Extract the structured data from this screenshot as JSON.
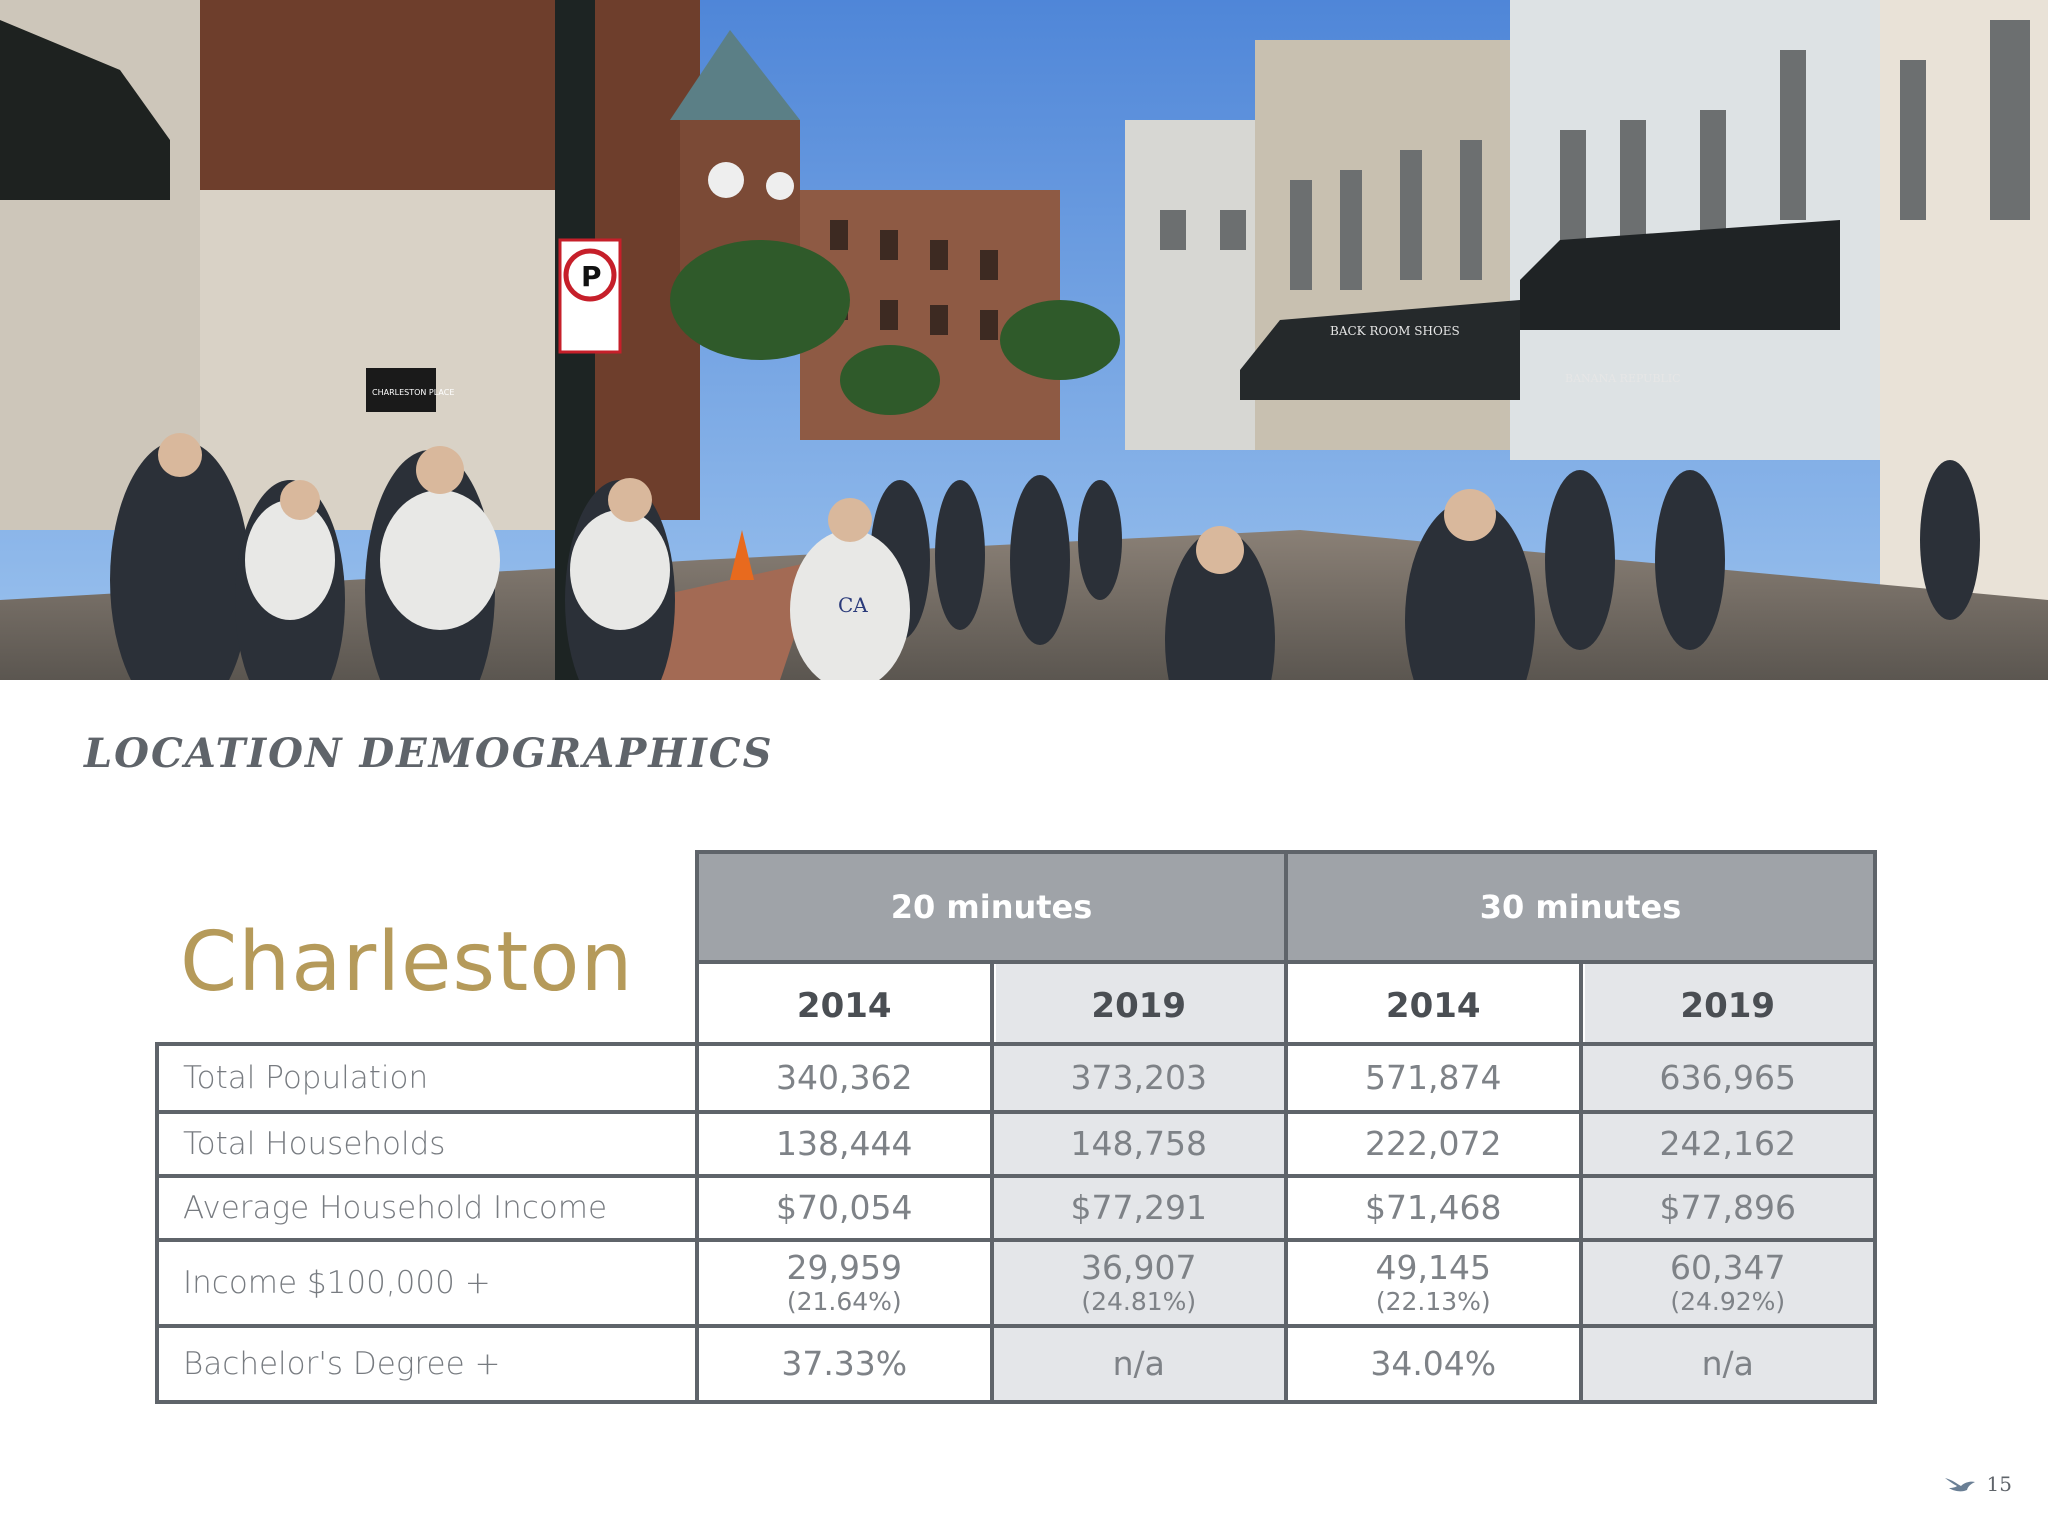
{
  "heading": "LOCATION DEMOGRAPHICS",
  "city": "Charleston",
  "photo": {
    "signs": {
      "no_parking": "P",
      "shop_left": "CHARLESTON PLACE",
      "shop_back_room": "BACK ROOM SHOES",
      "shop_banana": "BANANA REPUBLIC",
      "shirt_logo": "CA"
    }
  },
  "table": {
    "periods": [
      "20 minutes",
      "30 minutes"
    ],
    "years": [
      "2014",
      "2019",
      "2014",
      "2019"
    ],
    "rows": [
      {
        "label": "Total Population",
        "values": [
          "340,362",
          "373,203",
          "571,874",
          "636,965"
        ]
      },
      {
        "label": "Total Households",
        "values": [
          "138,444",
          "148,758",
          "222,072",
          "242,162"
        ]
      },
      {
        "label": "Average Household Income",
        "values": [
          "$70,054",
          "$77,291",
          "$71,468",
          "$77,896"
        ]
      },
      {
        "label": "Income $100,000 +",
        "values": [
          "29,959",
          "36,907",
          "49,145",
          "60,347"
        ],
        "pcts": [
          "(21.64%)",
          "(24.81%)",
          "(22.13%)",
          "(24.92%)"
        ]
      },
      {
        "label": "Bachelor's Degree +",
        "values": [
          "37.33%",
          "n/a",
          "34.04%",
          "n/a"
        ]
      }
    ]
  },
  "footer": {
    "page_number": "15",
    "logo_icon": "bird-logo-icon"
  },
  "colors": {
    "gold": "#b59a5a",
    "grid": "#5f646a",
    "header_fill": "#9fa3a8",
    "shade": "#e4e6e9"
  }
}
